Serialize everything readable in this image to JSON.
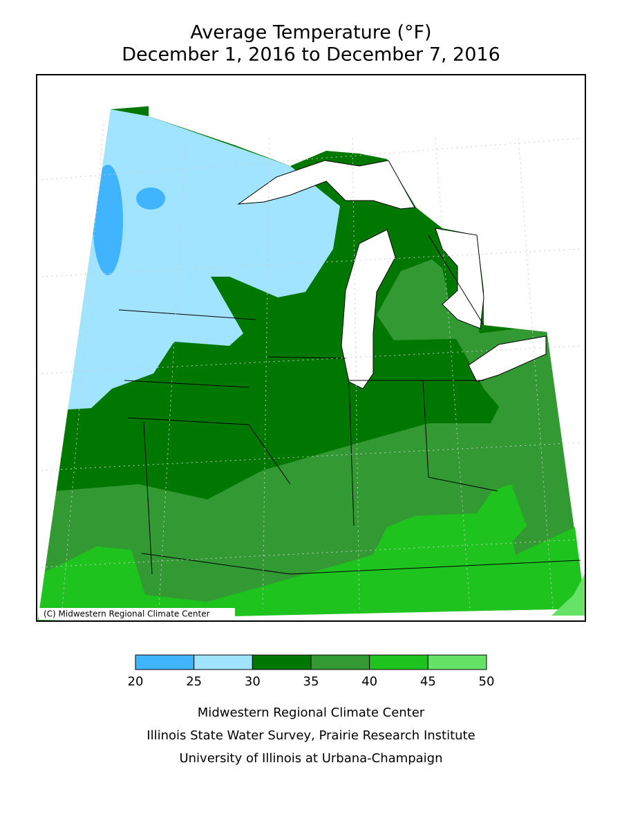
{
  "title": [
    "Average Temperature (°F)",
    "December 1, 2016 to December 7, 2016"
  ],
  "copyright": "(C) Midwestern Regional Climate Center",
  "legend": {
    "bins": [
      20,
      25,
      30,
      35,
      40,
      45,
      50
    ],
    "colors": [
      "#40b4ff",
      "#a0e4ff",
      "#007800",
      "#339933",
      "#1ec31e",
      "#66e366"
    ]
  },
  "footer": [
    "Midwestern Regional Climate Center",
    "Illinois State Water Survey, Prairie Research Institute",
    "University of Illinois at Urbana-Champaign"
  ]
}
